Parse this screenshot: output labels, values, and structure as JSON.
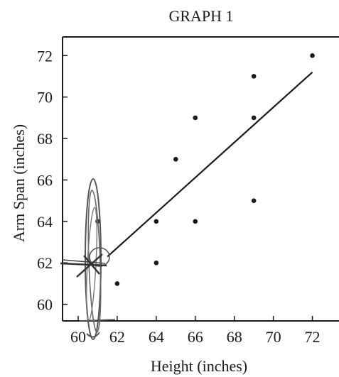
{
  "chart_data": {
    "type": "scatter",
    "title": "GRAPH 1",
    "xlabel": "Height (inches)",
    "ylabel": "Arm Span (inches)",
    "xlim": [
      59.2,
      73.4
    ],
    "ylim": [
      59.2,
      72.9
    ],
    "x_ticks": [
      60,
      62,
      64,
      66,
      68,
      70,
      72
    ],
    "y_ticks": [
      60,
      62,
      64,
      66,
      68,
      70,
      72
    ],
    "grid": false,
    "points": [
      {
        "x": 61,
        "y": 64
      },
      {
        "x": 62,
        "y": 61
      },
      {
        "x": 64,
        "y": 64
      },
      {
        "x": 64,
        "y": 62
      },
      {
        "x": 65,
        "y": 67
      },
      {
        "x": 66,
        "y": 69
      },
      {
        "x": 66,
        "y": 64
      },
      {
        "x": 69,
        "y": 71
      },
      {
        "x": 69,
        "y": 69
      },
      {
        "x": 69,
        "y": 65
      },
      {
        "x": 72,
        "y": 72
      }
    ],
    "trend_line": {
      "x": [
        61.5,
        72
      ],
      "y": [
        62.3,
        71.2
      ]
    },
    "handwritten_marks": {
      "description": "pen scribble: ellipse around the x = 61 region and a cross with arrow near the line start",
      "color": "#555555"
    },
    "colors": {
      "ink": "#1a1a1a",
      "pen": "#555555"
    }
  }
}
